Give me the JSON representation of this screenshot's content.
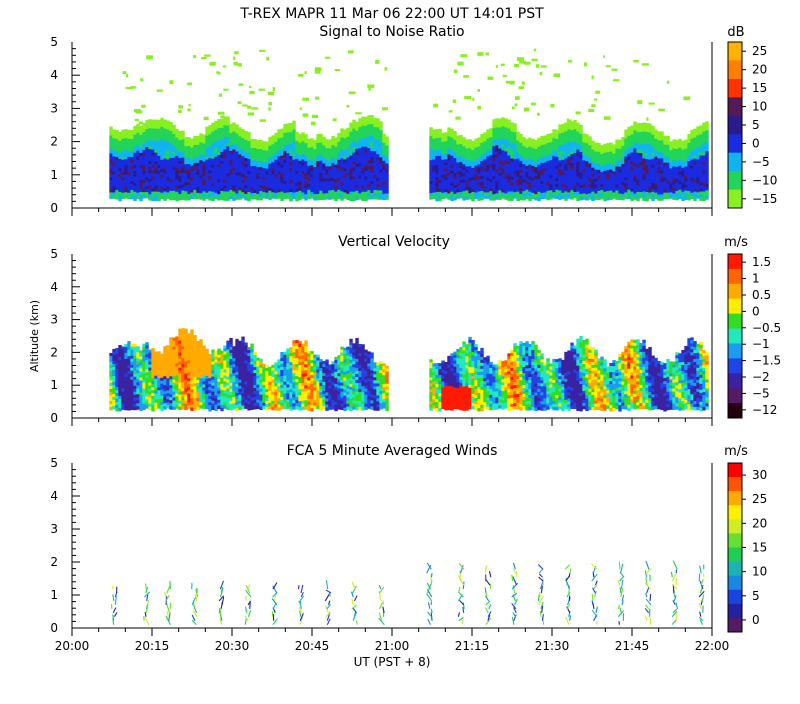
{
  "header": {
    "title": "T-REX   MAPR 11 Mar 06   22:00 UT   14:01   PST"
  },
  "axes": {
    "ylabel": "Altitude (km)",
    "xlabel": "UT  (PST + 8)",
    "x_ticks": [
      "20:00",
      "20:15",
      "20:30",
      "20:45",
      "21:00",
      "21:15",
      "21:30",
      "21:45",
      "22:00"
    ],
    "y_ticks": [
      "0",
      "1",
      "2",
      "3",
      "4",
      "5"
    ]
  },
  "chart_data": [
    {
      "type": "heatmap",
      "title": "Signal to Noise Ratio",
      "ylim": [
        0,
        5
      ],
      "x_range": [
        "20:00",
        "22:00"
      ],
      "colorbar": {
        "unit": "dB",
        "labels": [
          "25",
          "20",
          "15",
          "10",
          "5",
          "0",
          "−5",
          "−10",
          "−15"
        ],
        "colors": [
          "#ffb300",
          "#ff7f00",
          "#ff3300",
          "#551a55",
          "#2b1a8c",
          "#1a2be0",
          "#10b4f0",
          "#22d45a",
          "#88f020"
        ]
      },
      "data_gap": [
        "20:59",
        "21:07"
      ],
      "echo_top_km": [
        2.4,
        2.5,
        2.5,
        2.4,
        2.4,
        2.3,
        2.4,
        2.3,
        2.2,
        2.3,
        2.0,
        2.3,
        2.4,
        2.5,
        2.2,
        2.1,
        2.1,
        2.3,
        2.2,
        2.4,
        2.2,
        2.3,
        2.3,
        2.1,
        2.1,
        2.3,
        2.3,
        2.2,
        2.3
      ]
    },
    {
      "type": "heatmap",
      "title": "Vertical Velocity",
      "ylim": [
        0,
        5
      ],
      "x_range": [
        "20:00",
        "22:00"
      ],
      "colorbar": {
        "unit": "m/s",
        "labels": [
          "1.5",
          "1",
          "0.5",
          "0",
          "−0.5",
          "−1",
          "−1.5",
          "−2",
          "−5",
          "−12"
        ],
        "colors": [
          "#ff1a00",
          "#ff6600",
          "#ffaa00",
          "#ffee00",
          "#33dd22",
          "#22e8c0",
          "#1a9cf0",
          "#2244e6",
          "#3a22a0",
          "#551a66",
          "#220010"
        ]
      },
      "data_gap": [
        "20:59",
        "21:07"
      ]
    },
    {
      "type": "scatter",
      "title": "FCA 5 Minute Averaged Winds",
      "ylim": [
        0,
        5
      ],
      "x_range": [
        "20:00",
        "22:00"
      ],
      "colorbar": {
        "unit": "m/s",
        "labels": [
          "30",
          "25",
          "20",
          "15",
          "10",
          "5",
          "0"
        ],
        "colors": [
          "#ff0000",
          "#ff5500",
          "#ffaa00",
          "#ffee00",
          "#ccee22",
          "#66e030",
          "#22cc55",
          "#1ab4b4",
          "#1a88e0",
          "#1a44e0",
          "#2222a0",
          "#551a66"
        ]
      },
      "barb_times": [
        "20:08",
        "20:14",
        "20:18",
        "20:23",
        "20:28",
        "20:33",
        "20:38",
        "20:43",
        "20:48",
        "20:53",
        "20:58",
        "21:07",
        "21:13",
        "21:18",
        "21:23",
        "21:28",
        "21:33",
        "21:38",
        "21:43",
        "21:48",
        "21:53",
        "21:58"
      ]
    }
  ]
}
